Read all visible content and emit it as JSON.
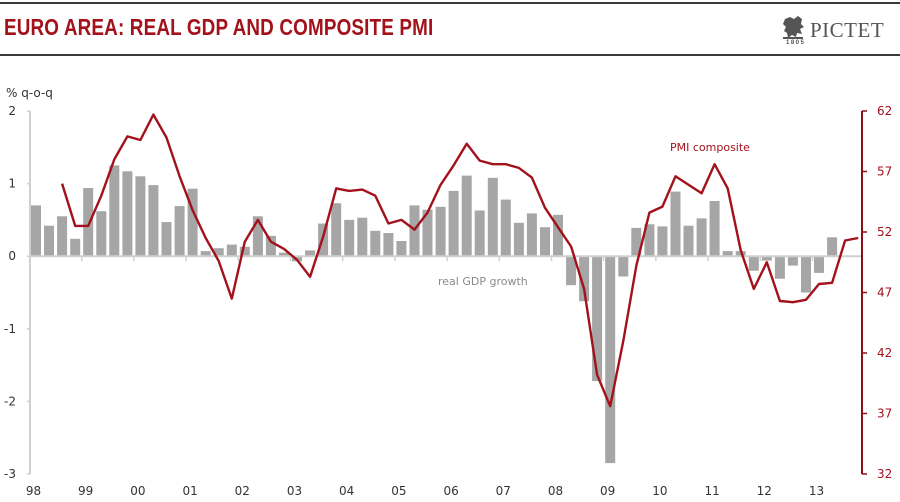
{
  "header": {
    "title": "EURO AREA: REAL GDP AND COMPOSITE PMI",
    "logo_text": "PICTET",
    "logo_year": "1805",
    "logo_icon": "lion-crest-icon"
  },
  "colors": {
    "title": "#a3111b",
    "pmi_line": "#a3111b",
    "gdp_bars": "#a6a6a6",
    "left_axis": "#d0d0d0",
    "right_axis": "#8b0f18"
  },
  "chart_data": {
    "type": "bar",
    "title": "EURO AREA: REAL GDP AND COMPOSITE PMI",
    "xlabel": "",
    "ylabel": "% q-o-q",
    "y2label": "",
    "ylim": [
      -3,
      2
    ],
    "y2lim": [
      32,
      62
    ],
    "yticks": [
      2,
      1,
      0,
      -1,
      -2,
      -3
    ],
    "y2ticks": [
      62,
      57,
      52,
      47,
      42,
      37,
      32
    ],
    "xtick_labels": [
      "98",
      "99",
      "00",
      "01",
      "02",
      "03",
      "04",
      "05",
      "06",
      "07",
      "08",
      "09",
      "10",
      "11",
      "12",
      "13"
    ],
    "grid": false,
    "legend": "inline-labels",
    "annotations": [
      {
        "text": "real GDP growth",
        "series": "real GDP growth"
      },
      {
        "text": "PMI composite",
        "series": "PMI composite"
      }
    ],
    "x": [
      "98Q1",
      "98Q2",
      "98Q3",
      "98Q4",
      "99Q1",
      "99Q2",
      "99Q3",
      "99Q4",
      "00Q1",
      "00Q2",
      "00Q3",
      "00Q4",
      "01Q1",
      "01Q2",
      "01Q3",
      "01Q4",
      "02Q1",
      "02Q2",
      "02Q3",
      "02Q4",
      "03Q1",
      "03Q2",
      "03Q3",
      "03Q4",
      "04Q1",
      "04Q2",
      "04Q3",
      "04Q4",
      "05Q1",
      "05Q2",
      "05Q3",
      "05Q4",
      "06Q1",
      "06Q2",
      "06Q3",
      "06Q4",
      "07Q1",
      "07Q2",
      "07Q3",
      "07Q4",
      "08Q1",
      "08Q2",
      "08Q3",
      "08Q4",
      "09Q1",
      "09Q2",
      "09Q3",
      "09Q4",
      "10Q1",
      "10Q2",
      "10Q3",
      "10Q4",
      "11Q1",
      "11Q2",
      "11Q3",
      "11Q4",
      "12Q1",
      "12Q2",
      "12Q3",
      "12Q4",
      "13Q1",
      "13Q2",
      "13Q3",
      "13Q4"
    ],
    "series": [
      {
        "name": "real GDP growth",
        "type": "bar",
        "axis": "left",
        "values": [
          0.7,
          0.42,
          0.55,
          0.24,
          0.94,
          0.62,
          1.25,
          1.17,
          1.1,
          0.98,
          0.47,
          0.69,
          0.93,
          0.07,
          0.11,
          0.16,
          0.13,
          0.55,
          0.28,
          0.05,
          -0.07,
          0.08,
          0.45,
          0.73,
          0.5,
          0.53,
          0.35,
          0.32,
          0.21,
          0.7,
          0.64,
          0.68,
          0.9,
          1.11,
          0.63,
          1.08,
          0.78,
          0.46,
          0.59,
          0.4,
          0.57,
          -0.4,
          -0.62,
          -1.72,
          -2.85,
          -0.28,
          0.39,
          0.44,
          0.41,
          0.89,
          0.42,
          0.52,
          0.76,
          0.07,
          0.07,
          -0.2,
          -0.06,
          -0.31,
          -0.13,
          -0.5,
          -0.23,
          0.26,
          null,
          null
        ]
      },
      {
        "name": "PMI composite",
        "type": "line",
        "axis": "right",
        "values": [
          null,
          null,
          56.0,
          52.5,
          52.5,
          55.0,
          58.0,
          59.9,
          59.6,
          61.7,
          59.8,
          56.6,
          53.8,
          51.5,
          49.6,
          46.5,
          51.2,
          53.0,
          51.2,
          50.6,
          49.7,
          48.3,
          51.6,
          55.6,
          55.4,
          55.5,
          55.0,
          52.7,
          53.0,
          52.2,
          53.6,
          55.9,
          57.5,
          59.3,
          57.9,
          57.6,
          57.6,
          57.3,
          56.5,
          54.0,
          52.4,
          50.8,
          47.3,
          40.2,
          37.6,
          43.0,
          49.2,
          53.6,
          54.1,
          56.6,
          55.9,
          55.2,
          57.6,
          55.6,
          50.5,
          47.3,
          49.5,
          46.3,
          46.2,
          46.4,
          47.7,
          47.8,
          51.3,
          51.5
        ]
      }
    ]
  }
}
